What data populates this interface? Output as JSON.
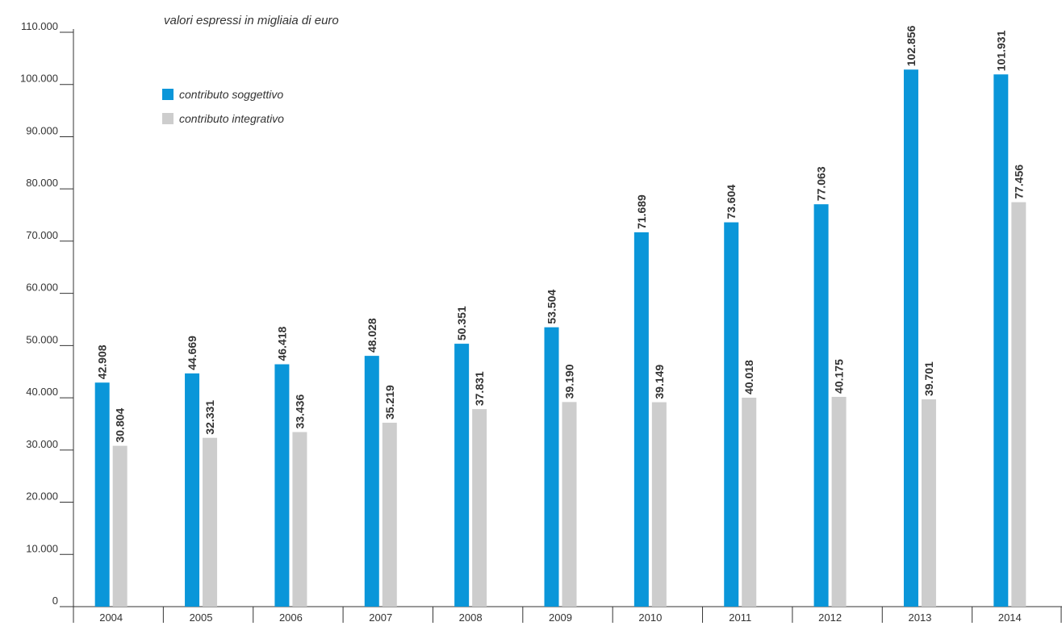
{
  "colors": {
    "soggettivo": "#0a96d9",
    "integrativo": "#cdcdcd",
    "axis": "#333333",
    "text": "#333333"
  },
  "legend": {
    "soggettivo": "contributo soggettivo",
    "integrativo": "contributo integrativo"
  },
  "chart_data": {
    "type": "bar",
    "subtitle": "valori espressi in migliaia di euro",
    "categories": [
      "2004",
      "2005",
      "2006",
      "2007",
      "2008",
      "2009",
      "2010",
      "2011",
      "2012",
      "2013",
      "2014"
    ],
    "series": [
      {
        "name": "contributo soggettivo",
        "values": [
          42908,
          44669,
          46418,
          48028,
          50351,
          53504,
          71689,
          73604,
          77063,
          102856,
          101931
        ],
        "labels": [
          "42.908",
          "44.669",
          "46.418",
          "48.028",
          "50.351",
          "53.504",
          "71.689",
          "73.604",
          "77.063",
          "102.856",
          "101.931"
        ]
      },
      {
        "name": "contributo integrativo",
        "values": [
          30804,
          32331,
          33436,
          35219,
          37831,
          39190,
          39149,
          40018,
          40175,
          39701,
          77456
        ],
        "labels": [
          "30.804",
          "32.331",
          "33.436",
          "35.219",
          "37.831",
          "39.190",
          "39.149",
          "40.018",
          "40.175",
          "39.701",
          "77.456"
        ]
      }
    ],
    "y_ticks": [
      0,
      10000,
      20000,
      30000,
      40000,
      50000,
      60000,
      70000,
      80000,
      90000,
      100000,
      110000
    ],
    "y_tick_labels": [
      "0",
      "10.000",
      "20.000",
      "30.000",
      "40.000",
      "50.000",
      "60.000",
      "70.000",
      "80.000",
      "90.000",
      "100.000",
      "110.000"
    ],
    "ylim": [
      0,
      110000
    ],
    "grid": false,
    "legend_position": "top-left"
  }
}
